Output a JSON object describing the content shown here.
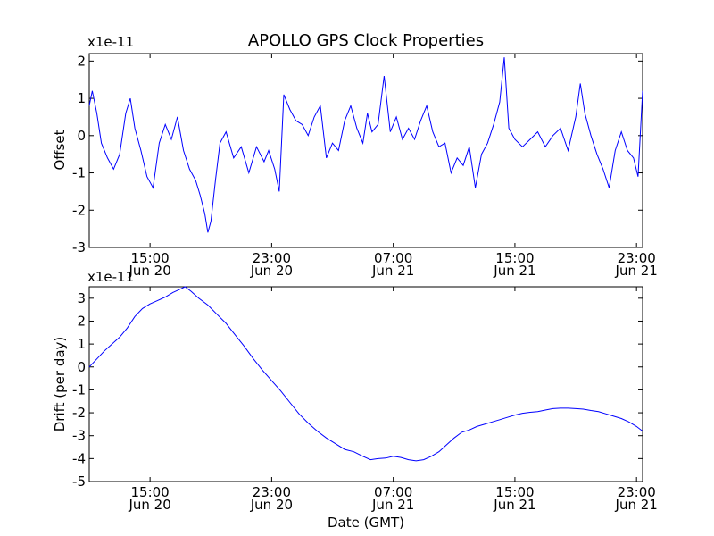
{
  "chart_data": [
    {
      "type": "line",
      "title": "APOLLO GPS Clock Properties",
      "xlabel": "",
      "ylabel": "Offset",
      "scale_label": "x1e-11",
      "ylim": [
        -3,
        2.2
      ],
      "yticks": [
        "2",
        "1",
        "0",
        "-1",
        "-2",
        "-3"
      ],
      "xticks": [
        {
          "time": "15:00",
          "date": "Jun 20"
        },
        {
          "time": "23:00",
          "date": "Jun 20"
        },
        {
          "time": "07:00",
          "date": "Jun 21"
        },
        {
          "time": "15:00",
          "date": "Jun 21"
        },
        {
          "time": "23:00",
          "date": "Jun 21"
        }
      ],
      "color": "#0000ff",
      "x_hours_range": [
        11.0,
        47.4
      ],
      "series": [
        {
          "points": [
            [
              11.0,
              0.8
            ],
            [
              11.2,
              1.2
            ],
            [
              11.5,
              0.6
            ],
            [
              11.8,
              -0.2
            ],
            [
              12.2,
              -0.6
            ],
            [
              12.6,
              -0.9
            ],
            [
              13.0,
              -0.5
            ],
            [
              13.4,
              0.6
            ],
            [
              13.7,
              1.0
            ],
            [
              14.0,
              0.2
            ],
            [
              14.4,
              -0.4
            ],
            [
              14.8,
              -1.1
            ],
            [
              15.2,
              -1.4
            ],
            [
              15.6,
              -0.2
            ],
            [
              16.0,
              0.3
            ],
            [
              16.4,
              -0.1
            ],
            [
              16.8,
              0.5
            ],
            [
              17.2,
              -0.4
            ],
            [
              17.6,
              -0.9
            ],
            [
              18.0,
              -1.2
            ],
            [
              18.3,
              -1.6
            ],
            [
              18.6,
              -2.1
            ],
            [
              18.8,
              -2.6
            ],
            [
              19.0,
              -2.3
            ],
            [
              19.3,
              -1.2
            ],
            [
              19.6,
              -0.2
            ],
            [
              20.0,
              0.1
            ],
            [
              20.5,
              -0.6
            ],
            [
              21.0,
              -0.3
            ],
            [
              21.5,
              -1.0
            ],
            [
              22.0,
              -0.3
            ],
            [
              22.5,
              -0.7
            ],
            [
              22.8,
              -0.4
            ],
            [
              23.2,
              -0.9
            ],
            [
              23.5,
              -1.5
            ],
            [
              23.8,
              1.1
            ],
            [
              24.2,
              0.7
            ],
            [
              24.6,
              0.4
            ],
            [
              25.0,
              0.3
            ],
            [
              25.4,
              0.0
            ],
            [
              25.8,
              0.5
            ],
            [
              26.2,
              0.8
            ],
            [
              26.6,
              -0.6
            ],
            [
              27.0,
              -0.2
            ],
            [
              27.4,
              -0.4
            ],
            [
              27.8,
              0.4
            ],
            [
              28.2,
              0.8
            ],
            [
              28.6,
              0.2
            ],
            [
              29.0,
              -0.2
            ],
            [
              29.3,
              0.6
            ],
            [
              29.6,
              0.1
            ],
            [
              30.0,
              0.3
            ],
            [
              30.4,
              1.6
            ],
            [
              30.8,
              0.1
            ],
            [
              31.2,
              0.5
            ],
            [
              31.6,
              -0.1
            ],
            [
              32.0,
              0.2
            ],
            [
              32.4,
              -0.1
            ],
            [
              32.8,
              0.4
            ],
            [
              33.2,
              0.8
            ],
            [
              33.6,
              0.1
            ],
            [
              34.0,
              -0.3
            ],
            [
              34.4,
              -0.2
            ],
            [
              34.8,
              -1.0
            ],
            [
              35.2,
              -0.6
            ],
            [
              35.6,
              -0.8
            ],
            [
              36.0,
              -0.3
            ],
            [
              36.4,
              -1.4
            ],
            [
              36.8,
              -0.5
            ],
            [
              37.2,
              -0.2
            ],
            [
              37.6,
              0.3
            ],
            [
              38.0,
              0.9
            ],
            [
              38.3,
              2.1
            ],
            [
              38.6,
              0.2
            ],
            [
              39.0,
              -0.1
            ],
            [
              39.5,
              -0.3
            ],
            [
              40.0,
              -0.1
            ],
            [
              40.5,
              0.1
            ],
            [
              41.0,
              -0.3
            ],
            [
              41.5,
              0.0
            ],
            [
              42.0,
              0.2
            ],
            [
              42.5,
              -0.4
            ],
            [
              43.0,
              0.5
            ],
            [
              43.3,
              1.4
            ],
            [
              43.6,
              0.6
            ],
            [
              44.0,
              0.0
            ],
            [
              44.4,
              -0.5
            ],
            [
              44.8,
              -0.9
            ],
            [
              45.2,
              -1.4
            ],
            [
              45.6,
              -0.4
            ],
            [
              46.0,
              0.1
            ],
            [
              46.4,
              -0.4
            ],
            [
              46.8,
              -0.6
            ],
            [
              47.1,
              -1.1
            ],
            [
              47.4,
              1.2
            ]
          ]
        }
      ]
    },
    {
      "type": "line",
      "title": "",
      "xlabel": "Date (GMT)",
      "ylabel": "Drift (per day)",
      "scale_label": "x1e-11",
      "ylim": [
        -5,
        3.5
      ],
      "yticks": [
        "3",
        "2",
        "1",
        "0",
        "-1",
        "-2",
        "-3",
        "-4",
        "-5"
      ],
      "xticks": [
        {
          "time": "15:00",
          "date": "Jun 20"
        },
        {
          "time": "23:00",
          "date": "Jun 20"
        },
        {
          "time": "07:00",
          "date": "Jun 21"
        },
        {
          "time": "15:00",
          "date": "Jun 21"
        },
        {
          "time": "23:00",
          "date": "Jun 21"
        }
      ],
      "color": "#0000ff",
      "x_hours_range": [
        11.0,
        47.4
      ],
      "series": [
        {
          "points": [
            [
              11.0,
              0.0
            ],
            [
              11.5,
              0.35
            ],
            [
              12.0,
              0.7
            ],
            [
              12.5,
              1.0
            ],
            [
              13.0,
              1.3
            ],
            [
              13.5,
              1.7
            ],
            [
              14.0,
              2.2
            ],
            [
              14.5,
              2.55
            ],
            [
              15.0,
              2.75
            ],
            [
              15.5,
              2.9
            ],
            [
              16.0,
              3.05
            ],
            [
              16.5,
              3.25
            ],
            [
              17.0,
              3.4
            ],
            [
              17.3,
              3.5
            ],
            [
              17.7,
              3.3
            ],
            [
              18.2,
              3.0
            ],
            [
              18.8,
              2.7
            ],
            [
              19.4,
              2.3
            ],
            [
              20.0,
              1.9
            ],
            [
              20.6,
              1.4
            ],
            [
              21.2,
              0.9
            ],
            [
              21.8,
              0.35
            ],
            [
              22.4,
              -0.15
            ],
            [
              23.0,
              -0.6
            ],
            [
              23.6,
              -1.05
            ],
            [
              24.2,
              -1.55
            ],
            [
              24.8,
              -2.05
            ],
            [
              25.4,
              -2.45
            ],
            [
              26.0,
              -2.8
            ],
            [
              26.6,
              -3.1
            ],
            [
              27.2,
              -3.35
            ],
            [
              27.8,
              -3.6
            ],
            [
              28.4,
              -3.7
            ],
            [
              29.0,
              -3.9
            ],
            [
              29.5,
              -4.05
            ],
            [
              30.0,
              -4.0
            ],
            [
              30.5,
              -3.98
            ],
            [
              31.0,
              -3.9
            ],
            [
              31.5,
              -3.95
            ],
            [
              32.0,
              -4.05
            ],
            [
              32.5,
              -4.1
            ],
            [
              33.0,
              -4.05
            ],
            [
              33.5,
              -3.9
            ],
            [
              34.0,
              -3.7
            ],
            [
              34.5,
              -3.4
            ],
            [
              35.0,
              -3.1
            ],
            [
              35.5,
              -2.85
            ],
            [
              36.0,
              -2.75
            ],
            [
              36.5,
              -2.6
            ],
            [
              37.0,
              -2.5
            ],
            [
              37.5,
              -2.4
            ],
            [
              38.0,
              -2.3
            ],
            [
              38.5,
              -2.2
            ],
            [
              39.0,
              -2.1
            ],
            [
              39.5,
              -2.02
            ],
            [
              40.0,
              -1.98
            ],
            [
              40.5,
              -1.95
            ],
            [
              41.0,
              -1.88
            ],
            [
              41.5,
              -1.82
            ],
            [
              42.0,
              -1.8
            ],
            [
              42.5,
              -1.8
            ],
            [
              43.0,
              -1.82
            ],
            [
              43.5,
              -1.84
            ],
            [
              44.0,
              -1.9
            ],
            [
              44.5,
              -1.95
            ],
            [
              45.0,
              -2.05
            ],
            [
              45.5,
              -2.15
            ],
            [
              46.0,
              -2.25
            ],
            [
              46.5,
              -2.4
            ],
            [
              47.0,
              -2.6
            ],
            [
              47.4,
              -2.8
            ]
          ]
        }
      ]
    }
  ]
}
